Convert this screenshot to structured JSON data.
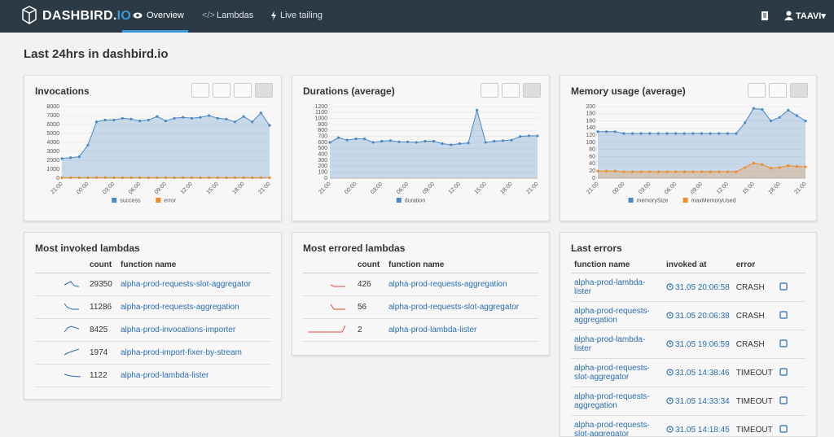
{
  "nav": {
    "brand": "DASHBIRD.",
    "brand_suffix": "IO",
    "tabs": [
      "Overview",
      "Lambdas",
      "Live tailing"
    ],
    "user": "TAAVI"
  },
  "heading": "Last 24hrs in dashbird.io",
  "chart_data": [
    {
      "type": "area",
      "title": "Invocations",
      "categories": [
        "21:00",
        null,
        null,
        "00:00",
        null,
        null,
        "03:00",
        null,
        null,
        "06:00",
        null,
        null,
        "09:00",
        null,
        null,
        "12:00",
        null,
        null,
        "15:00",
        null,
        null,
        "18:00",
        null,
        null,
        "21:00"
      ],
      "series": [
        {
          "name": "success",
          "color": "#4a89c5",
          "values": [
            2200,
            2300,
            2400,
            3700,
            6300,
            6500,
            6500,
            6700,
            6600,
            6400,
            6500,
            6900,
            6400,
            6700,
            6800,
            6700,
            6800,
            7000,
            6700,
            6600,
            6300,
            6900,
            6300,
            7300,
            5900
          ]
        },
        {
          "name": "error",
          "color": "#f08a24",
          "values": [
            60,
            60,
            60,
            60,
            70,
            70,
            60,
            60,
            60,
            60,
            60,
            60,
            60,
            60,
            60,
            60,
            60,
            60,
            60,
            60,
            60,
            60,
            60,
            60,
            60
          ]
        }
      ],
      "ylim": [
        0,
        8000
      ],
      "yticks": [
        0,
        1000,
        2000,
        3000,
        4000,
        5000,
        6000,
        7000,
        8000
      ],
      "grid": true
    },
    {
      "type": "area",
      "title": "Durations (average)",
      "categories": [
        "21:00",
        null,
        null,
        "00:00",
        null,
        null,
        "03:00",
        null,
        null,
        "06:00",
        null,
        null,
        "09:00",
        null,
        null,
        "12:00",
        null,
        null,
        "15:00",
        null,
        null,
        "18:00",
        null,
        null,
        "21:00"
      ],
      "series": [
        {
          "name": "duration",
          "color": "#4a89c5",
          "values": [
            600,
            680,
            640,
            660,
            660,
            600,
            620,
            630,
            610,
            610,
            600,
            620,
            620,
            580,
            560,
            580,
            590,
            1140,
            600,
            620,
            630,
            640,
            700,
            710,
            710
          ]
        }
      ],
      "ylim": [
        0,
        1200
      ],
      "yticks": [
        0,
        100,
        200,
        300,
        400,
        500,
        600,
        700,
        800,
        900,
        1000,
        1100,
        1200
      ],
      "grid": true
    },
    {
      "type": "area",
      "title": "Memory usage (average)",
      "categories": [
        "21:00",
        null,
        null,
        "00:00",
        null,
        null,
        "03:00",
        null,
        null,
        "06:00",
        null,
        null,
        "09:00",
        null,
        null,
        "12:00",
        null,
        null,
        "15:00",
        null,
        null,
        "18:00",
        null,
        null,
        "21:00"
      ],
      "series": [
        {
          "name": "memorySize",
          "color": "#4a89c5",
          "values": [
            130,
            130,
            130,
            125,
            125,
            125,
            125,
            125,
            125,
            125,
            125,
            125,
            125,
            125,
            125,
            125,
            125,
            155,
            195,
            192,
            160,
            170,
            190,
            175,
            160
          ]
        },
        {
          "name": "maxMemoryUsed",
          "color": "#f08a24",
          "values": [
            20,
            20,
            20,
            18,
            18,
            18,
            18,
            18,
            18,
            18,
            18,
            18,
            18,
            18,
            18,
            18,
            18,
            30,
            42,
            38,
            28,
            30,
            35,
            33,
            32
          ]
        }
      ],
      "ylim": [
        0,
        200
      ],
      "yticks": [
        0,
        20,
        40,
        60,
        80,
        100,
        120,
        140,
        160,
        180,
        200
      ],
      "grid": true
    }
  ],
  "most_invoked": {
    "title": "Most invoked lambdas",
    "columns": [
      "count",
      "function name"
    ],
    "rows": [
      [
        29350,
        "alpha-prod-requests-slot-aggregator"
      ],
      [
        11286,
        "alpha-prod-requests-aggregation"
      ],
      [
        8425,
        "alpha-prod-invocations-importer"
      ],
      [
        1974,
        "alpha-prod-import-fixer-by-stream"
      ],
      [
        1122,
        "alpha-prod-lambda-lister"
      ]
    ]
  },
  "most_errored": {
    "title": "Most errored lambdas",
    "columns": [
      "count",
      "function name"
    ],
    "rows": [
      [
        426,
        "alpha-prod-requests-aggregation"
      ],
      [
        56,
        "alpha-prod-requests-slot-aggregator"
      ],
      [
        2,
        "alpha-prod-lambda-lister"
      ]
    ]
  },
  "last_errors": {
    "title": "Last errors",
    "columns": [
      "function name",
      "invoked at",
      "error"
    ],
    "rows": [
      [
        "alpha-prod-lambda-lister",
        "31.05 20:06:58",
        "CRASH"
      ],
      [
        "alpha-prod-requests-aggregation",
        "31.05 20:06:38",
        "CRASH"
      ],
      [
        "alpha-prod-lambda-lister",
        "31.05 19:06:59",
        "CRASH"
      ],
      [
        "alpha-prod-requests-slot-aggregator",
        "31.05 14:38:46",
        "TIMEOUT"
      ],
      [
        "alpha-prod-requests-aggregation",
        "31.05 14:33:34",
        "TIMEOUT"
      ],
      [
        "alpha-prod-requests-slot-aggregator",
        "31.05 14:18:45",
        "TIMEOUT"
      ]
    ]
  }
}
